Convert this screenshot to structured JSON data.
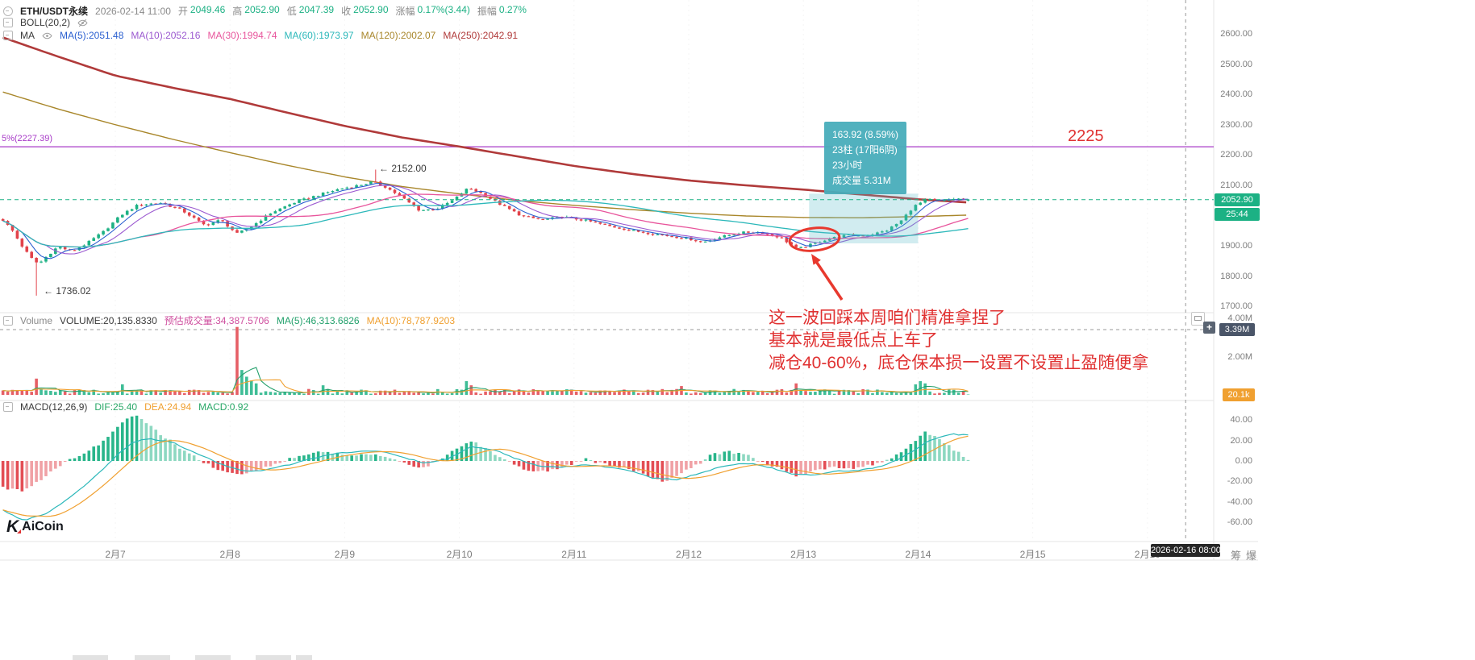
{
  "colors": {
    "up": "#1cb184",
    "down": "#e2434b",
    "annotation_red": "#e8392e",
    "text_red": "#e03131",
    "purple_line": "#a83bc8",
    "volume_badge": "#f0a030",
    "crosshair_badge": "#4a5568",
    "time_badge": "#262626"
  },
  "header": {
    "symbol": "ETH/USDT永续",
    "datetime": "2026-02-14 11:00",
    "fields": [
      {
        "label": "开",
        "value": "2049.46"
      },
      {
        "label": "高",
        "value": "2052.90"
      },
      {
        "label": "低",
        "value": "2047.39"
      },
      {
        "label": "收",
        "value": "2052.90"
      },
      {
        "label": "涨幅",
        "value": "0.17%(3.44)"
      },
      {
        "label": "振幅",
        "value": "0.27%"
      }
    ],
    "boll_label": "BOLL(20,2)",
    "ma_group_label": "MA",
    "ma_items": [
      {
        "text": "MA(5):2051.48",
        "color": "#2a5fd0"
      },
      {
        "text": "MA(10):2052.16",
        "color": "#9b59d0"
      },
      {
        "text": "MA(30):1994.74",
        "color": "#e8559c"
      },
      {
        "text": "MA(60):1973.97",
        "color": "#2cb8ba"
      },
      {
        "text": "MA(120):2002.07",
        "color": "#a8862a"
      },
      {
        "text": "MA(250):2042.91",
        "color": "#b03a3a"
      }
    ]
  },
  "main": {
    "left_line_label": "5%(2227.39)",
    "line_annotation": "2225",
    "marked_high": "← 2152.00",
    "marked_low": "← 1736.02",
    "price_badge": "2052.90",
    "countdown": "25:44",
    "price_ticks": [
      "2600.00",
      "2500.00",
      "2400.00",
      "2300.00",
      "2200.00",
      "2100.00",
      "2000.00",
      "1900.00",
      "1800.00",
      "1700.00"
    ],
    "tooltip": [
      "163.92 (8.59%)",
      "23柱 (17阳6阴)",
      "23小时",
      "成交量 5.31M"
    ]
  },
  "volume": {
    "label": "Volume",
    "volume_text": "VOLUME:20,135.8330",
    "est_text": "预估成交量:34,387.5706",
    "ma5_text": "MA(5):46,313.6826",
    "ma10_text": "MA(10):78,787.9203",
    "axis": [
      "4.00M",
      "2.00M"
    ],
    "crosshair_badge": "3.39M",
    "current_badge": "20.1k"
  },
  "macd": {
    "label": "MACD(12,26,9)",
    "dif_text": "DIF:25.40",
    "dea_text": "DEA:24.94",
    "macd_text": "MACD:0.92",
    "axis": [
      "40.00",
      "20.00",
      "0.00",
      "-20.00",
      "-40.00",
      "-60.00"
    ]
  },
  "time_axis": {
    "labels": [
      "2月7",
      "2月8",
      "2月9",
      "2月10",
      "2月11",
      "2月12",
      "2月13",
      "2月14",
      "2月15",
      "2月16"
    ],
    "badge": "2026-02-16 08:00",
    "buttons": [
      "筹",
      "爆"
    ]
  },
  "annotations": {
    "lines": [
      "这一波回踩本周咱们精准拿捏了",
      "基本就是最低点上车了",
      "减仓40-60%，底仓保本损一设置不设置止盈随便拿"
    ]
  },
  "watermark": "AiCoin",
  "chart_data": {
    "type": "candlestick",
    "symbol": "ETH/USDT永续",
    "interval": "1小时",
    "current_candle": {
      "time": "2026-02-14 11:00",
      "open": 2049.46,
      "high": 2052.9,
      "low": 2047.39,
      "close": 2052.9,
      "change_pct": 0.17,
      "change_abs": 3.44,
      "amplitude_pct": 0.27,
      "volume": 20135.833
    },
    "price_axis_ticks": [
      2600,
      2500,
      2400,
      2300,
      2200,
      2100,
      2000,
      1900,
      1800,
      1700
    ],
    "x_axis_days": [
      7,
      8,
      9,
      10,
      11,
      12,
      13,
      14,
      15,
      16
    ],
    "marked_high": 2152.0,
    "marked_low": 1736.02,
    "horizontal_line": {
      "price": 2227.39,
      "label": "2225",
      "left_label": "5%(2227.39)"
    },
    "ma_values": {
      "MA5": 2051.48,
      "MA10": 2052.16,
      "MA30": 1994.74,
      "MA60": 1973.97,
      "MA120": 2002.07,
      "MA250": 2042.91
    },
    "boll_settings": "BOLL(20,2)",
    "low_wick": {
      "day": 6.33,
      "low": 1736.02
    },
    "high_wick": {
      "day": 9.25,
      "high": 2152.0
    },
    "price_path_anchors": [
      [
        6.02,
        1985
      ],
      [
        6.1,
        1952
      ],
      [
        6.18,
        1903
      ],
      [
        6.26,
        1862
      ],
      [
        6.33,
        1840
      ],
      [
        6.42,
        1872
      ],
      [
        6.5,
        1898
      ],
      [
        6.62,
        1882
      ],
      [
        6.75,
        1908
      ],
      [
        6.9,
        1948
      ],
      [
        7.05,
        2002
      ],
      [
        7.2,
        2036
      ],
      [
        7.4,
        2042
      ],
      [
        7.58,
        2018
      ],
      [
        7.78,
        1968
      ],
      [
        7.92,
        1986
      ],
      [
        8.06,
        1940
      ],
      [
        8.18,
        1962
      ],
      [
        8.35,
        2008
      ],
      [
        8.55,
        2042
      ],
      [
        8.75,
        2066
      ],
      [
        8.95,
        2088
      ],
      [
        9.12,
        2100
      ],
      [
        9.25,
        2112
      ],
      [
        9.35,
        2096
      ],
      [
        9.5,
        2060
      ],
      [
        9.65,
        2018
      ],
      [
        9.8,
        2022
      ],
      [
        9.95,
        2052
      ],
      [
        10.08,
        2092
      ],
      [
        10.2,
        2072
      ],
      [
        10.38,
        2032
      ],
      [
        10.55,
        1998
      ],
      [
        10.72,
        1986
      ],
      [
        10.9,
        1996
      ],
      [
        11.1,
        1984
      ],
      [
        11.3,
        1966
      ],
      [
        11.55,
        1948
      ],
      [
        11.8,
        1934
      ],
      [
        12.0,
        1924
      ],
      [
        12.12,
        1912
      ],
      [
        12.28,
        1930
      ],
      [
        12.45,
        1944
      ],
      [
        12.62,
        1946
      ],
      [
        12.8,
        1928
      ],
      [
        12.95,
        1890
      ],
      [
        13.08,
        1906
      ],
      [
        13.22,
        1924
      ],
      [
        13.38,
        1936
      ],
      [
        13.55,
        1934
      ],
      [
        13.72,
        1950
      ],
      [
        13.85,
        1982
      ],
      [
        13.96,
        2030
      ],
      [
        14.08,
        2054
      ],
      [
        14.2,
        2048
      ],
      [
        14.32,
        2056
      ],
      [
        14.46,
        2052.9
      ]
    ],
    "ma250_anchors": [
      [
        6.02,
        2588
      ],
      [
        6.5,
        2525
      ],
      [
        7,
        2462
      ],
      [
        7.5,
        2422
      ],
      [
        8,
        2385
      ],
      [
        8.5,
        2340
      ],
      [
        9,
        2296
      ],
      [
        9.5,
        2258
      ],
      [
        10,
        2228
      ],
      [
        10.5,
        2196
      ],
      [
        11,
        2164
      ],
      [
        11.5,
        2138
      ],
      [
        12,
        2116
      ],
      [
        12.5,
        2100
      ],
      [
        13,
        2086
      ],
      [
        13.5,
        2070
      ],
      [
        14,
        2054
      ],
      [
        14.46,
        2042.91
      ]
    ],
    "ma120_anchors": [
      [
        6.02,
        2408
      ],
      [
        6.5,
        2352
      ],
      [
        7,
        2300
      ],
      [
        7.5,
        2252
      ],
      [
        8,
        2208
      ],
      [
        8.5,
        2166
      ],
      [
        9,
        2128
      ],
      [
        9.5,
        2096
      ],
      [
        10,
        2072
      ],
      [
        10.5,
        2050
      ],
      [
        11,
        2034
      ],
      [
        11.5,
        2020
      ],
      [
        12,
        2008
      ],
      [
        12.5,
        1999
      ],
      [
        13,
        1994
      ],
      [
        13.5,
        1993
      ],
      [
        14,
        1997
      ],
      [
        14.46,
        2002.07
      ]
    ],
    "measure": {
      "day_start": 13.05,
      "day_end": 14.0,
      "price_low": 1908.6,
      "price_high": 2072.5,
      "change": 163.92,
      "change_pct": 8.59,
      "bars": 23,
      "bars_up": 17,
      "bars_down": 6,
      "hours": 23,
      "volume": "5.31M"
    },
    "volume_series": {
      "current": 20135.833,
      "estimated": 34387.5706,
      "ma5": 46313.6826,
      "ma10": 78787.9203,
      "axis_values": [
        4000000,
        2000000
      ],
      "crosshair_value": 3390000
    },
    "volume_spikes_m": [
      [
        6.33,
        0.85
      ],
      [
        7.05,
        0.55
      ],
      [
        8.06,
        3.55
      ],
      [
        8.1,
        1.3
      ],
      [
        8.14,
        0.95
      ],
      [
        8.18,
        0.75
      ],
      [
        8.23,
        0.6
      ],
      [
        8.8,
        0.5
      ],
      [
        10.06,
        0.72
      ],
      [
        10.1,
        0.5
      ],
      [
        11.95,
        0.46
      ],
      [
        12.95,
        0.6
      ],
      [
        13.96,
        0.55
      ],
      [
        14.0,
        0.72
      ],
      [
        14.06,
        0.6
      ]
    ],
    "macd_series": {
      "dif": 25.4,
      "dea": 24.94,
      "macd": 0.92,
      "axis_values": [
        40,
        20,
        0,
        -20,
        -40,
        -60
      ],
      "hist_anchors": [
        [
          6.02,
          -26
        ],
        [
          6.2,
          -30
        ],
        [
          6.35,
          -18
        ],
        [
          6.5,
          -6
        ],
        [
          6.65,
          4
        ],
        [
          6.8,
          12
        ],
        [
          6.95,
          24
        ],
        [
          7.08,
          40
        ],
        [
          7.18,
          44
        ],
        [
          7.3,
          34
        ],
        [
          7.45,
          22
        ],
        [
          7.6,
          10
        ],
        [
          7.75,
          0
        ],
        [
          7.9,
          -8
        ],
        [
          8.05,
          -13
        ],
        [
          8.2,
          -10
        ],
        [
          8.35,
          -5
        ],
        [
          8.5,
          2
        ],
        [
          8.65,
          6
        ],
        [
          8.8,
          9
        ],
        [
          8.95,
          7
        ],
        [
          9.1,
          5
        ],
        [
          9.25,
          7
        ],
        [
          9.4,
          3
        ],
        [
          9.55,
          -4
        ],
        [
          9.7,
          -6
        ],
        [
          9.85,
          2
        ],
        [
          10.0,
          14
        ],
        [
          10.1,
          20
        ],
        [
          10.25,
          10
        ],
        [
          10.4,
          2
        ],
        [
          10.55,
          -8
        ],
        [
          10.7,
          -11
        ],
        [
          10.85,
          -7
        ],
        [
          11.0,
          -2
        ],
        [
          11.1,
          2
        ],
        [
          11.25,
          -3
        ],
        [
          11.4,
          -6
        ],
        [
          11.55,
          -10
        ],
        [
          11.65,
          -16
        ],
        [
          11.8,
          -20
        ],
        [
          11.95,
          -10
        ],
        [
          12.1,
          -2
        ],
        [
          12.2,
          6
        ],
        [
          12.35,
          9
        ],
        [
          12.5,
          6
        ],
        [
          12.65,
          -2
        ],
        [
          12.8,
          -8
        ],
        [
          12.95,
          -15
        ],
        [
          13.1,
          -10
        ],
        [
          13.25,
          -6
        ],
        [
          13.4,
          -8
        ],
        [
          13.55,
          -5
        ],
        [
          13.7,
          0
        ],
        [
          13.85,
          8
        ],
        [
          13.95,
          18
        ],
        [
          14.05,
          28
        ],
        [
          14.15,
          24
        ],
        [
          14.25,
          16
        ],
        [
          14.35,
          8
        ],
        [
          14.46,
          0.92
        ]
      ],
      "dif_anchors": [
        [
          6.02,
          -48
        ],
        [
          6.2,
          -58
        ],
        [
          6.4,
          -52
        ],
        [
          6.6,
          -36
        ],
        [
          6.8,
          -18
        ],
        [
          7.0,
          4
        ],
        [
          7.15,
          18
        ],
        [
          7.3,
          22
        ],
        [
          7.5,
          18
        ],
        [
          7.7,
          8
        ],
        [
          7.9,
          -2
        ],
        [
          8.1,
          -10
        ],
        [
          8.3,
          -9
        ],
        [
          8.5,
          -4
        ],
        [
          8.7,
          2
        ],
        [
          8.9,
          7
        ],
        [
          9.1,
          9
        ],
        [
          9.3,
          10
        ],
        [
          9.5,
          4
        ],
        [
          9.7,
          -2
        ],
        [
          9.9,
          2
        ],
        [
          10.1,
          14
        ],
        [
          10.3,
          11
        ],
        [
          10.5,
          2
        ],
        [
          10.7,
          -5
        ],
        [
          10.9,
          -6
        ],
        [
          11.1,
          -4
        ],
        [
          11.3,
          -6
        ],
        [
          11.5,
          -10
        ],
        [
          11.7,
          -17
        ],
        [
          11.9,
          -18
        ],
        [
          12.1,
          -12
        ],
        [
          12.3,
          -5
        ],
        [
          12.5,
          -2
        ],
        [
          12.7,
          -6
        ],
        [
          12.9,
          -13
        ],
        [
          13.1,
          -14
        ],
        [
          13.3,
          -10
        ],
        [
          13.5,
          -9
        ],
        [
          13.7,
          -5
        ],
        [
          13.9,
          6
        ],
        [
          14.1,
          20
        ],
        [
          14.3,
          26
        ],
        [
          14.46,
          25.4
        ]
      ]
    },
    "crosshair": {
      "day": 16.3333,
      "time": "2026-02-16 08:00",
      "volume_value": "3.39M"
    }
  }
}
